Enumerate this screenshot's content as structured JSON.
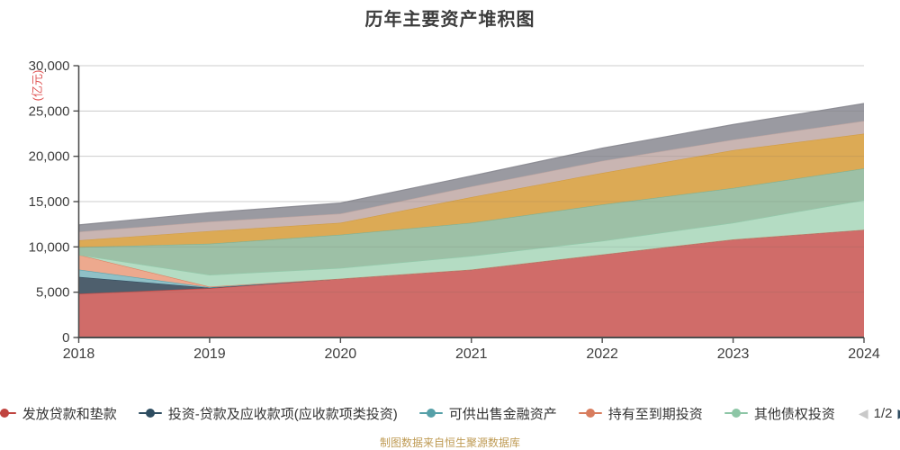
{
  "title": "历年主要资产堆积图",
  "source_note": "制图数据来自恒生聚源数据库",
  "y_axis": {
    "name": "(亿元)",
    "name_color": "#e05858",
    "tick_labels": [
      "0",
      "5,000",
      "10,000",
      "15,000",
      "20,000",
      "25,000",
      "30,000"
    ]
  },
  "x_axis": {
    "tick_labels": [
      "2018",
      "2019",
      "2020",
      "2021",
      "2022",
      "2023",
      "2024"
    ]
  },
  "legend": {
    "items": [
      {
        "label": "发放贷款和垫款",
        "color": "#c0443f"
      },
      {
        "label": "投资-贷款及应收款项(应收款项类投资)",
        "color": "#2e4d61"
      },
      {
        "label": "可供出售金融资产",
        "color": "#56a0a8"
      },
      {
        "label": "持有至到期投资",
        "color": "#d87d5e"
      },
      {
        "label": "其他债权投资",
        "color": "#8dc6a6"
      }
    ],
    "pager": {
      "prev_icon": "◀",
      "label": "1/2",
      "next_icon": "▶",
      "prev_color": "#c9c9c9",
      "next_color": "#2f4d61"
    }
  },
  "chart_data": {
    "type": "area",
    "stacked": true,
    "title": "历年主要资产堆积图",
    "xlabel": "",
    "ylabel": "(亿元)",
    "ylim": [
      0,
      30000
    ],
    "ytick_step": 5000,
    "grid": true,
    "legend_position": "bottom",
    "categories": [
      2018,
      2019,
      2020,
      2021,
      2022,
      2023,
      2024
    ],
    "series": [
      {
        "name": "发放贷款和垫款",
        "values": [
          4830,
          5430,
          6500,
          7500,
          9170,
          10830,
          11900
        ],
        "area_color": "#d06c69",
        "line_color": "#c0443f",
        "in_legend": true
      },
      {
        "name": "投资-贷款及应收款项(应收款项类投资)",
        "values": [
          1870,
          60,
          0,
          0,
          0,
          0,
          0
        ],
        "area_color": "#4e5f6d",
        "line_color": "#2e4d61",
        "in_legend": true
      },
      {
        "name": "可供出售金融资产",
        "values": [
          800,
          40,
          0,
          0,
          0,
          0,
          0
        ],
        "area_color": "#8fc0c7",
        "line_color": "#56a0a8",
        "in_legend": true
      },
      {
        "name": "持有至到期投资",
        "values": [
          1630,
          80,
          0,
          0,
          0,
          0,
          0
        ],
        "area_color": "#eda98e",
        "line_color": "#d87d5e",
        "in_legend": true
      },
      {
        "name": "其他债权投资",
        "values": [
          0,
          1300,
          1170,
          1500,
          1500,
          1840,
          3270
        ],
        "area_color": "#b4dcc3",
        "line_color": "#8dc6a6",
        "in_legend": true
      },
      {
        "name": "",
        "values": [
          840,
          3440,
          3670,
          3670,
          4000,
          3830,
          3500
        ],
        "area_color": "#9dc0a6",
        "line_color": "#7fae8c",
        "in_legend": false
      },
      {
        "name": "",
        "values": [
          760,
          1400,
          1330,
          2830,
          3500,
          4170,
          3830
        ],
        "area_color": "#dcaa55",
        "line_color": "#cf9a41",
        "in_legend": false
      },
      {
        "name": "",
        "values": [
          940,
          1030,
          1000,
          1170,
          1330,
          1160,
          1400
        ],
        "area_color": "#c9b5b2",
        "line_color": "#bda39f",
        "in_legend": false
      },
      {
        "name": "",
        "values": [
          760,
          1000,
          1170,
          1160,
          1400,
          1670,
          1930
        ],
        "area_color": "#9a9aa1",
        "line_color": "#87878f",
        "in_legend": false
      }
    ]
  }
}
